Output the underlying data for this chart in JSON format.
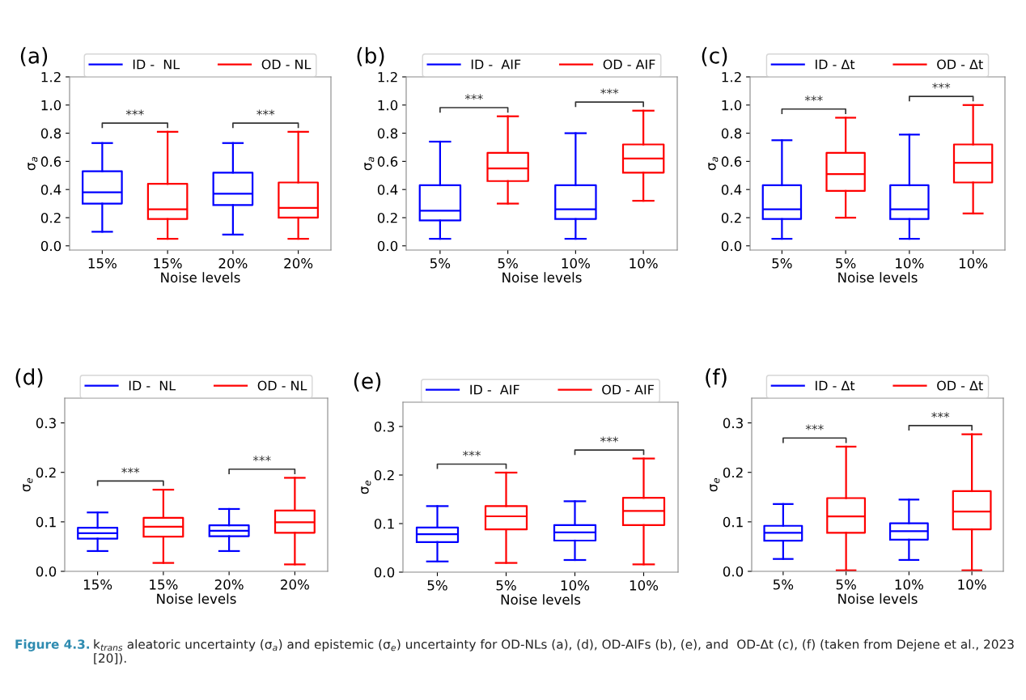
{
  "chart_data": [
    {
      "type": "box",
      "title": "(a)",
      "xlabel": "Noise levels",
      "ylabel": "σ$_{a}$",
      "categories": [
        "15%",
        "15%",
        "20%",
        "20%"
      ],
      "ylim": [
        -0.03,
        1.2
      ],
      "yticks": [
        {
          "value": 0,
          "label": "0.0"
        },
        {
          "value": 0.2,
          "label": "0.2"
        },
        {
          "value": 0.4,
          "label": "0.4"
        },
        {
          "value": 0.6,
          "label": "0.6"
        },
        {
          "value": 0.8,
          "label": "0.8"
        },
        {
          "value": 1.0,
          "label": "1.0"
        },
        {
          "value": 1.2,
          "label": "1.2"
        }
      ],
      "legend": "top",
      "grid": false,
      "annotations": [
        "***",
        "***"
      ],
      "series": [
        {
          "name": "ID -  NL",
          "color": "#0000ff",
          "boxes": [
            {
              "low": 0.1,
              "q1": 0.3,
              "median": 0.38,
              "q3": 0.53,
              "high": 0.73
            },
            null,
            {
              "low": 0.08,
              "q1": 0.29,
              "median": 0.37,
              "q3": 0.52,
              "high": 0.73
            },
            null
          ]
        },
        {
          "name": "OD - NL",
          "color": "#ff0000",
          "boxes": [
            null,
            {
              "low": 0.05,
              "q1": 0.19,
              "median": 0.26,
              "q3": 0.44,
              "high": 0.81
            },
            null,
            {
              "low": 0.05,
              "q1": 0.2,
              "median": 0.27,
              "q3": 0.45,
              "high": 0.81
            }
          ]
        }
      ]
    },
    {
      "type": "box",
      "title": "(b)",
      "xlabel": "Noise levels",
      "ylabel": "σ$_{a}$",
      "categories": [
        "5%",
        "5%",
        "10%",
        "10%"
      ],
      "ylim": [
        -0.03,
        1.2
      ],
      "yticks": [
        {
          "value": 0,
          "label": "0.0"
        },
        {
          "value": 0.2,
          "label": "0.2"
        },
        {
          "value": 0.4,
          "label": "0.4"
        },
        {
          "value": 0.6,
          "label": "0.6"
        },
        {
          "value": 0.8,
          "label": "0.8"
        },
        {
          "value": 1.0,
          "label": "1.0"
        },
        {
          "value": 1.2,
          "label": "1.2"
        }
      ],
      "legend": "top",
      "grid": false,
      "annotations": [
        "***",
        "***"
      ],
      "series": [
        {
          "name": "ID -  AIF",
          "color": "#0000ff",
          "boxes": [
            {
              "low": 0.05,
              "q1": 0.18,
              "median": 0.25,
              "q3": 0.43,
              "high": 0.74
            },
            null,
            {
              "low": 0.05,
              "q1": 0.19,
              "median": 0.26,
              "q3": 0.43,
              "high": 0.8
            },
            null
          ]
        },
        {
          "name": "OD - AIF",
          "color": "#ff0000",
          "boxes": [
            null,
            {
              "low": 0.3,
              "q1": 0.46,
              "median": 0.55,
              "q3": 0.66,
              "high": 0.92
            },
            null,
            {
              "low": 0.32,
              "q1": 0.52,
              "median": 0.62,
              "q3": 0.72,
              "high": 0.96
            }
          ]
        }
      ]
    },
    {
      "type": "box",
      "title": "(c)",
      "xlabel": "Noise levels",
      "ylabel": "σ$_{a}$",
      "categories": [
        "5%",
        "5%",
        "10%",
        "10%"
      ],
      "ylim": [
        -0.03,
        1.2
      ],
      "yticks": [
        {
          "value": 0,
          "label": "0.0"
        },
        {
          "value": 0.2,
          "label": "0.2"
        },
        {
          "value": 0.4,
          "label": "0.4"
        },
        {
          "value": 0.6,
          "label": "0.6"
        },
        {
          "value": 0.8,
          "label": "0.8"
        },
        {
          "value": 1.0,
          "label": "1.0"
        },
        {
          "value": 1.2,
          "label": "1.2"
        }
      ],
      "legend": "top",
      "grid": false,
      "annotations": [
        "***",
        "***"
      ],
      "series": [
        {
          "name": "ID - Δt",
          "color": "#0000ff",
          "boxes": [
            {
              "low": 0.05,
              "q1": 0.19,
              "median": 0.26,
              "q3": 0.43,
              "high": 0.75
            },
            null,
            {
              "low": 0.05,
              "q1": 0.19,
              "median": 0.26,
              "q3": 0.43,
              "high": 0.79
            },
            null
          ]
        },
        {
          "name": "OD - Δt",
          "color": "#ff0000",
          "boxes": [
            null,
            {
              "low": 0.2,
              "q1": 0.39,
              "median": 0.51,
              "q3": 0.66,
              "high": 0.91
            },
            null,
            {
              "low": 0.23,
              "q1": 0.45,
              "median": 0.59,
              "q3": 0.72,
              "high": 1.0
            }
          ]
        }
      ]
    },
    {
      "type": "box",
      "title": "(d)",
      "xlabel": "Noise levels",
      "ylabel": "σ$_{e}$",
      "categories": [
        "15%",
        "15%",
        "20%",
        "20%"
      ],
      "ylim": [
        0,
        0.35
      ],
      "yticks": [
        {
          "value": 0,
          "label": "0.0"
        },
        {
          "value": 0.1,
          "label": "0.1"
        },
        {
          "value": 0.2,
          "label": "0.2"
        },
        {
          "value": 0.3,
          "label": "0.3"
        }
      ],
      "legend": "top",
      "grid": false,
      "annotations": [
        "***",
        "***"
      ],
      "series": [
        {
          "name": "ID -  NL",
          "color": "#0000ff",
          "boxes": [
            {
              "low": 0.041,
              "q1": 0.066,
              "median": 0.077,
              "q3": 0.088,
              "high": 0.119
            },
            null,
            {
              "low": 0.041,
              "q1": 0.071,
              "median": 0.082,
              "q3": 0.093,
              "high": 0.126
            },
            null
          ]
        },
        {
          "name": "OD - NL",
          "color": "#ff0000",
          "boxes": [
            null,
            {
              "low": 0.017,
              "q1": 0.07,
              "median": 0.09,
              "q3": 0.108,
              "high": 0.165
            },
            null,
            {
              "low": 0.014,
              "q1": 0.078,
              "median": 0.099,
              "q3": 0.123,
              "high": 0.189
            }
          ]
        }
      ]
    },
    {
      "type": "box",
      "title": "(e)",
      "xlabel": "Noise levels",
      "ylabel": "σ$_{e}$",
      "categories": [
        "5%",
        "5%",
        "10%",
        "10%"
      ],
      "ylim": [
        0,
        0.35
      ],
      "yticks": [
        {
          "value": 0,
          "label": "0.0"
        },
        {
          "value": 0.1,
          "label": "0.1"
        },
        {
          "value": 0.2,
          "label": "0.2"
        },
        {
          "value": 0.3,
          "label": "0.3"
        }
      ],
      "legend": "top",
      "grid": false,
      "annotations": [
        "***",
        "***"
      ],
      "series": [
        {
          "name": "ID -  AIF",
          "color": "#0000ff",
          "boxes": [
            {
              "low": 0.022,
              "q1": 0.062,
              "median": 0.078,
              "q3": 0.092,
              "high": 0.136
            },
            null,
            {
              "low": 0.025,
              "q1": 0.065,
              "median": 0.082,
              "q3": 0.097,
              "high": 0.146
            },
            null
          ]
        },
        {
          "name": "OD - AIF",
          "color": "#ff0000",
          "boxes": [
            null,
            {
              "low": 0.019,
              "q1": 0.088,
              "median": 0.115,
              "q3": 0.136,
              "high": 0.205
            },
            null,
            {
              "low": 0.016,
              "q1": 0.097,
              "median": 0.126,
              "q3": 0.153,
              "high": 0.234
            }
          ]
        }
      ]
    },
    {
      "type": "box",
      "title": "(f)",
      "xlabel": "Noise levels",
      "ylabel": "σ$_{e}$",
      "categories": [
        "5%",
        "5%",
        "10%",
        "10%"
      ],
      "ylim": [
        0,
        0.35
      ],
      "yticks": [
        {
          "value": 0,
          "label": "0.0"
        },
        {
          "value": 0.1,
          "label": "0.1"
        },
        {
          "value": 0.2,
          "label": "0.2"
        },
        {
          "value": 0.3,
          "label": "0.3"
        }
      ],
      "legend": "top",
      "grid": false,
      "annotations": [
        "***",
        "***"
      ],
      "series": [
        {
          "name": "ID - Δt",
          "color": "#0000ff",
          "boxes": [
            {
              "low": 0.025,
              "q1": 0.062,
              "median": 0.078,
              "q3": 0.092,
              "high": 0.136
            },
            null,
            {
              "low": 0.023,
              "q1": 0.064,
              "median": 0.081,
              "q3": 0.097,
              "high": 0.145
            },
            null
          ]
        },
        {
          "name": "OD - Δt",
          "color": "#ff0000",
          "boxes": [
            null,
            {
              "low": 0.002,
              "q1": 0.078,
              "median": 0.111,
              "q3": 0.148,
              "high": 0.252
            },
            null,
            {
              "low": 0.002,
              "q1": 0.085,
              "median": 0.121,
              "q3": 0.162,
              "high": 0.277
            }
          ]
        }
      ]
    },
    {
      "type": "other",
      "annotations": [
        "Figure 4.3.",
        "k$_{trans}$ aleatoric uncertainty (σ$_{a}$) and epistemic (σ$_{e}$) uncertainty for OD-NLs (a), (d), OD-AIFs (b), (e), and  OD-Δt (c), (f) (taken from Dejene et al., 2023 [20])."
      ]
    }
  ]
}
